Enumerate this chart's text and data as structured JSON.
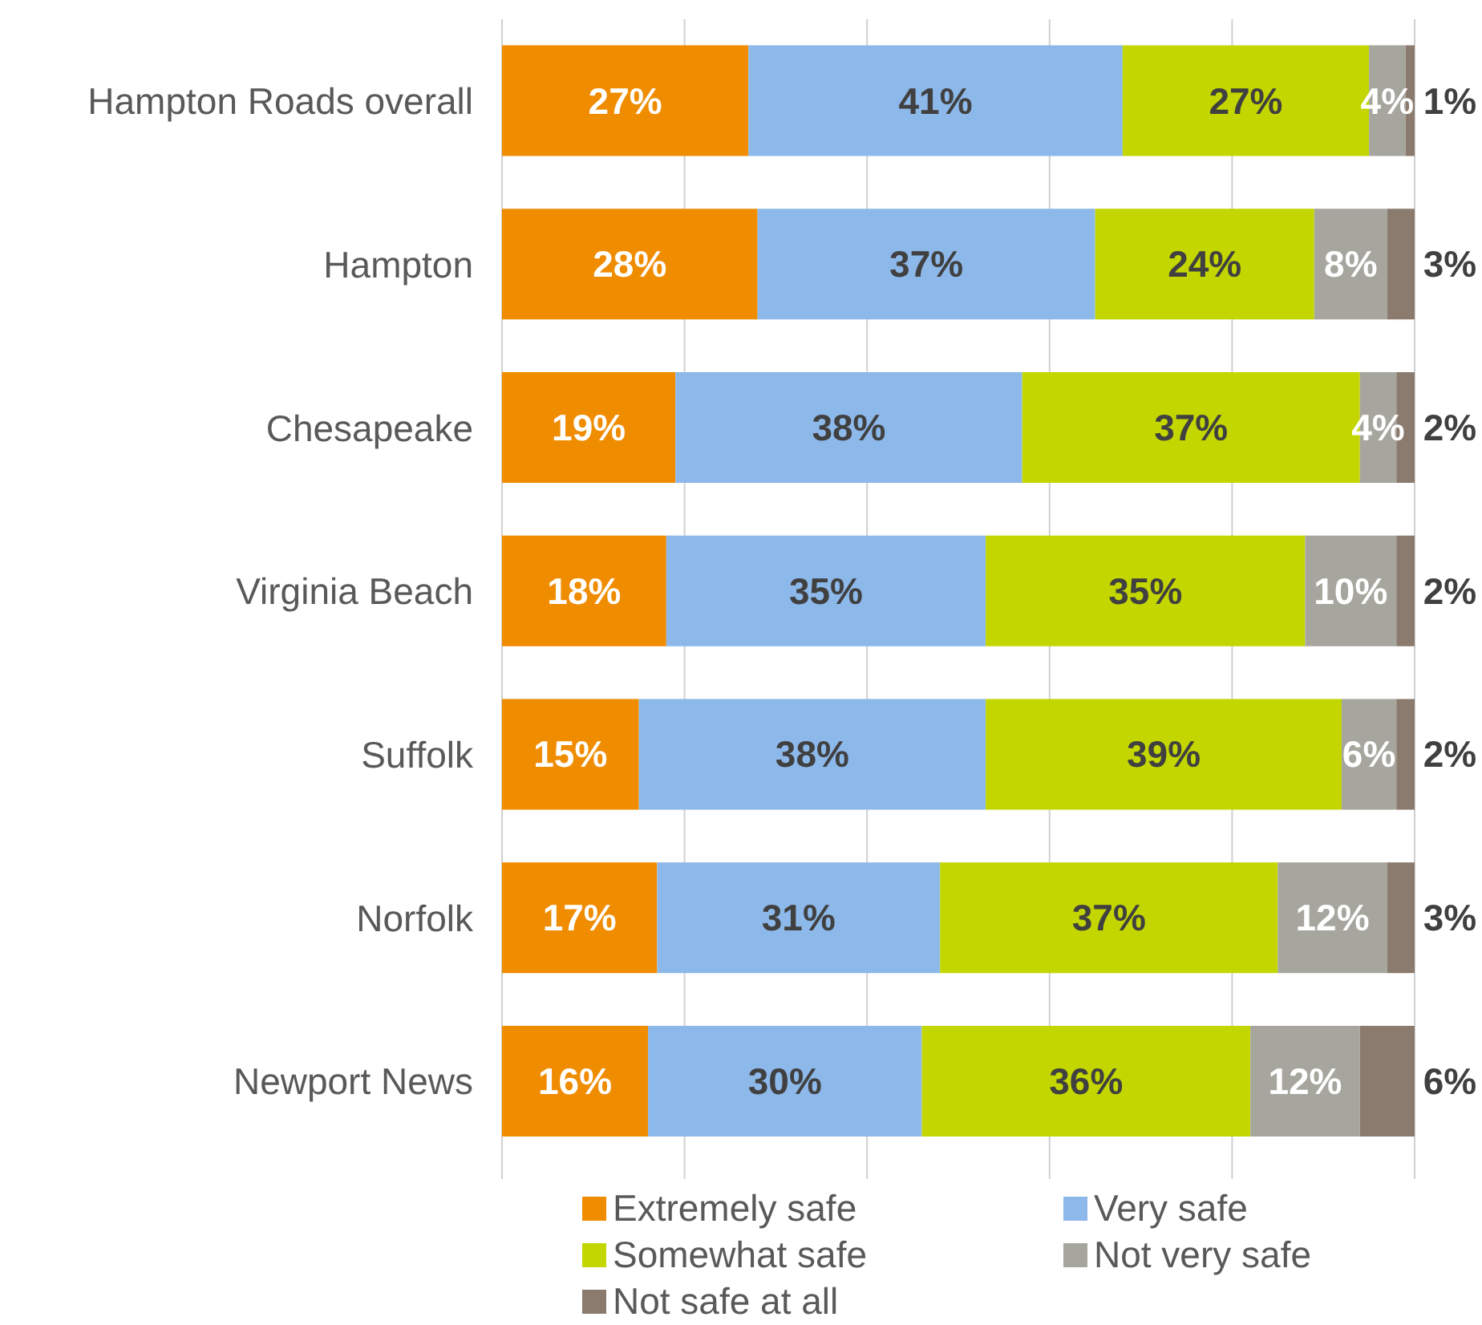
{
  "chart_data": {
    "type": "bar",
    "orientation": "horizontal",
    "stacked": true,
    "categories": [
      "Hampton Roads overall",
      "Hampton",
      "Chesapeake",
      "Virginia Beach",
      "Suffolk",
      "Norfolk",
      "Newport News"
    ],
    "series": [
      {
        "name": "Extremely safe",
        "color": "#f08c00",
        "values": [
          27,
          28,
          19,
          18,
          15,
          17,
          16
        ],
        "value_labels": [
          "27%",
          "28%",
          "19%",
          "18%",
          "15%",
          "17%",
          "16%"
        ]
      },
      {
        "name": "Very safe",
        "color": "#8db8ea",
        "values": [
          41,
          37,
          38,
          35,
          38,
          31,
          30
        ],
        "value_labels": [
          "41%",
          "37%",
          "38%",
          "35%",
          "38%",
          "31%",
          "30%"
        ]
      },
      {
        "name": "Somewhat safe",
        "color": "#c3d600",
        "values": [
          27,
          24,
          37,
          35,
          39,
          37,
          36
        ],
        "value_labels": [
          "27%",
          "24%",
          "37%",
          "35%",
          "39%",
          "37%",
          "36%"
        ]
      },
      {
        "name": "Not very safe",
        "color": "#a6a69e",
        "values": [
          4,
          8,
          4,
          10,
          6,
          12,
          12
        ],
        "value_labels": [
          "4%",
          "8%",
          "4%",
          "10%",
          "6%",
          "12%",
          "12%"
        ]
      },
      {
        "name": "Not safe at all",
        "color": "#8b7b6e",
        "values": [
          1,
          3,
          2,
          2,
          2,
          3,
          6
        ],
        "value_labels": [
          "1%",
          "3%",
          "2%",
          "2%",
          "2%",
          "3%",
          "6%"
        ]
      }
    ],
    "xlim": [
      0,
      100
    ],
    "xticks": [
      {
        "value": 0,
        "label": null
      },
      {
        "value": 20,
        "label": null
      },
      {
        "value": 40,
        "label": null
      },
      {
        "value": 60,
        "label": null
      },
      {
        "value": 80,
        "label": null
      },
      {
        "value": 100,
        "label": null
      }
    ],
    "tick_labels": "y",
    "grid": "x",
    "legend": "bottom"
  }
}
